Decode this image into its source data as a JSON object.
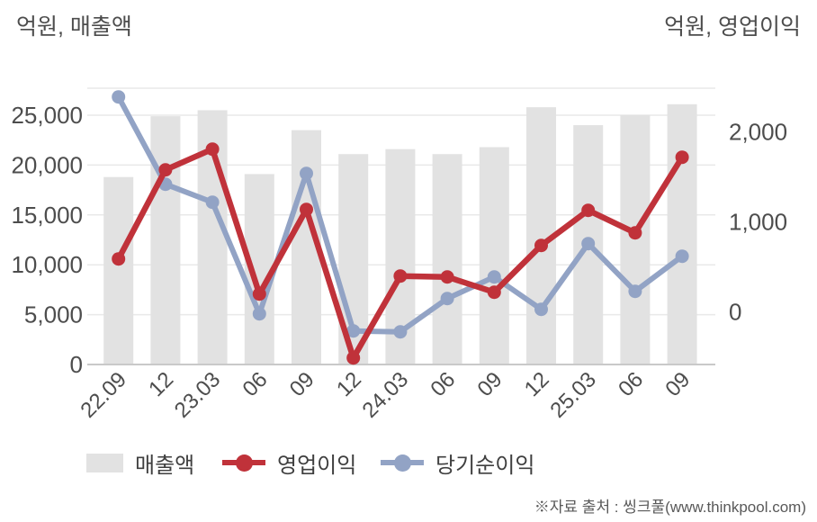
{
  "titles": {
    "left": "억원, 매출액",
    "right": "억원, 영업이익"
  },
  "legend": [
    {
      "label": "매출액",
      "type": "bar",
      "color": "#e2e2e2"
    },
    {
      "label": "영업이익",
      "type": "line",
      "color": "#c0323a"
    },
    {
      "label": "당기순이익",
      "type": "line",
      "color": "#92a3c5"
    }
  ],
  "footer": {
    "source": "※자료 출처 : 씽크풀(www.thinkpool.com)"
  },
  "colors": {
    "grid": "#e9e9e9",
    "axis_line": "#c9c9c9",
    "tick_text": "#4d4d4d",
    "bar": "#e2e2e2",
    "operating_profit": "#c0323a",
    "net_income": "#92a3c5"
  },
  "chart_data": {
    "type": "combo (bar + 2 lines, dual axis)",
    "title": "",
    "categories": [
      "22.09",
      "12",
      "23.03",
      "06",
      "09",
      "12",
      "24.03",
      "06",
      "09",
      "12",
      "25.03",
      "06",
      "09"
    ],
    "series": [
      {
        "name": "매출액",
        "type": "bar",
        "axis": "left",
        "color": "#e2e2e2",
        "values": [
          18800,
          24900,
          25500,
          19100,
          23500,
          21100,
          21600,
          21100,
          21800,
          25800,
          24000,
          25000,
          26100
        ]
      },
      {
        "name": "영업이익",
        "type": "line",
        "axis": "right",
        "color": "#c0323a",
        "values": [
          590,
          1580,
          1810,
          200,
          1140,
          -510,
          400,
          390,
          220,
          740,
          1130,
          880,
          1720
        ]
      },
      {
        "name": "당기순이익",
        "type": "line",
        "axis": "right",
        "color": "#92a3c5",
        "values": [
          2390,
          1420,
          1220,
          -20,
          1540,
          -210,
          -220,
          150,
          390,
          30,
          760,
          230,
          620
        ]
      }
    ],
    "left_axis": {
      "label": "억원, 매출액",
      "ticks": [
        0,
        5000,
        10000,
        15000,
        20000,
        25000
      ],
      "range": [
        0,
        27700
      ]
    },
    "right_axis": {
      "label": "억원, 영업이익",
      "ticks": [
        0,
        1000,
        2000
      ],
      "range": [
        -580,
        2490
      ]
    },
    "grid": true,
    "legend_position": "bottom"
  }
}
